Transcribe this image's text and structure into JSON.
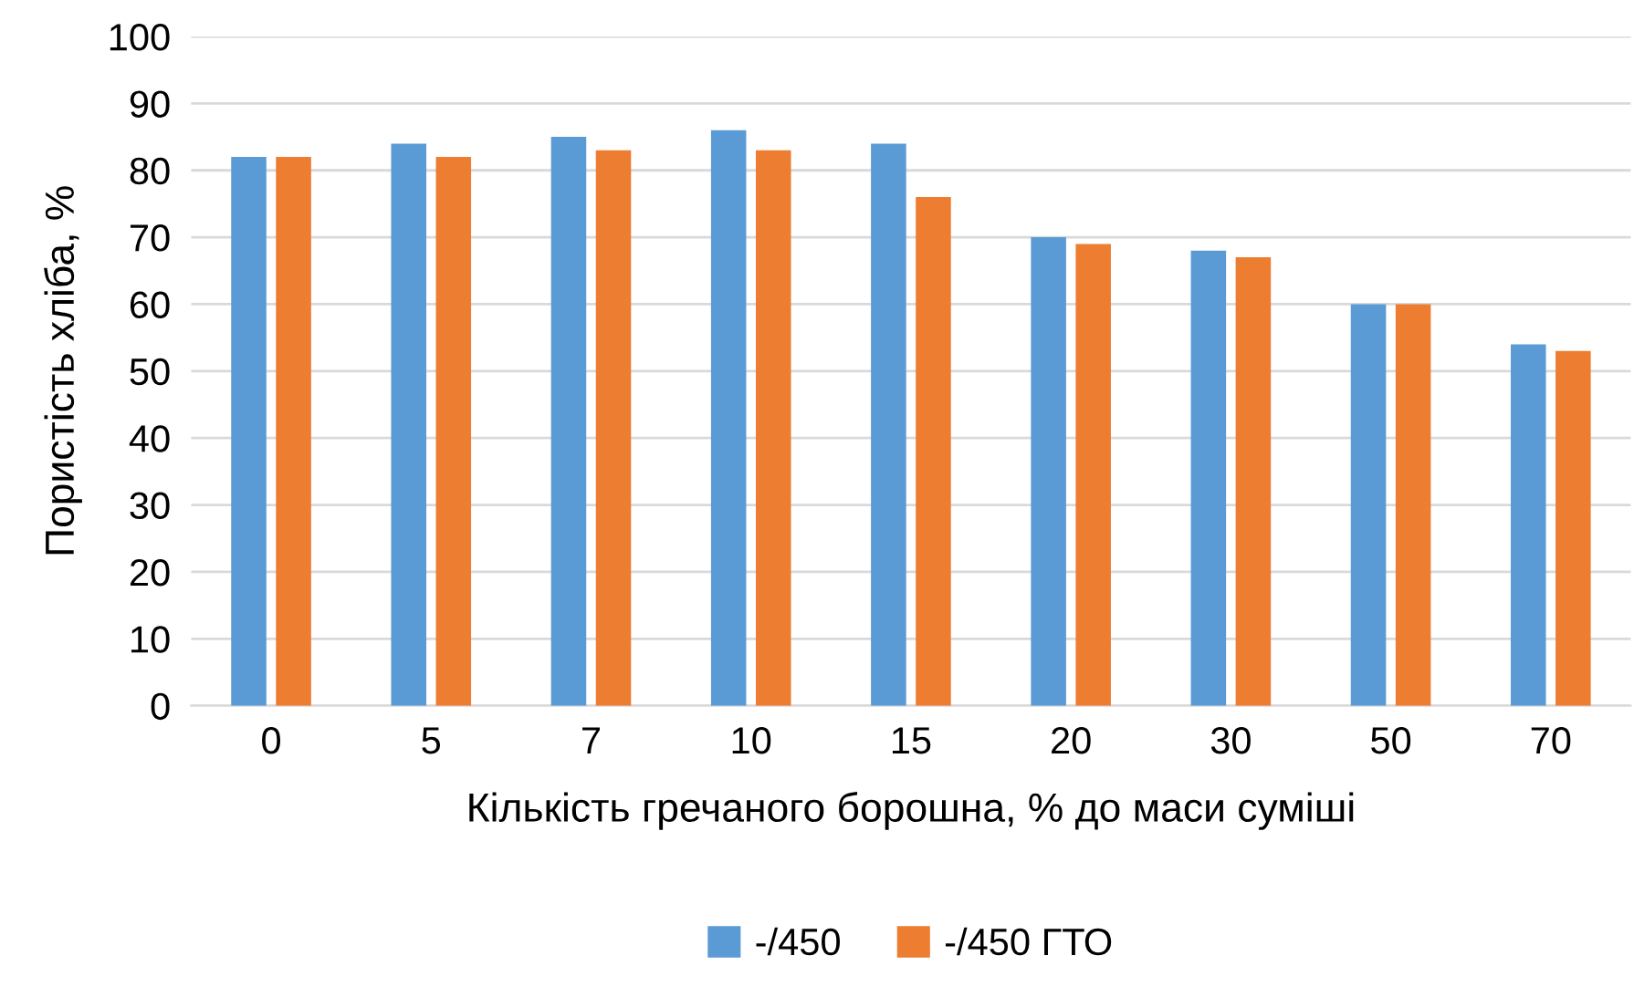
{
  "chart_data": {
    "type": "bar",
    "xlabel": "Кількість гречаного борошна, % до маси суміші",
    "ylabel": "Пористість хліба, %",
    "categories": [
      "0",
      "5",
      "7",
      "10",
      "15",
      "20",
      "30",
      "50",
      "70"
    ],
    "series": [
      {
        "name": "-/450",
        "color": "#5b9bd5",
        "values": [
          82,
          84,
          85,
          86,
          84,
          70,
          68,
          60,
          54
        ]
      },
      {
        "name": "-/450 ГТО",
        "color": "#ed7d31",
        "values": [
          82,
          82,
          83,
          83,
          76,
          69,
          67,
          60,
          53
        ]
      }
    ],
    "ylim": [
      0,
      100
    ],
    "yticks": [
      0,
      10,
      20,
      30,
      40,
      50,
      60,
      70,
      80,
      90,
      100
    ],
    "grid": "y",
    "legend": "bottom"
  }
}
